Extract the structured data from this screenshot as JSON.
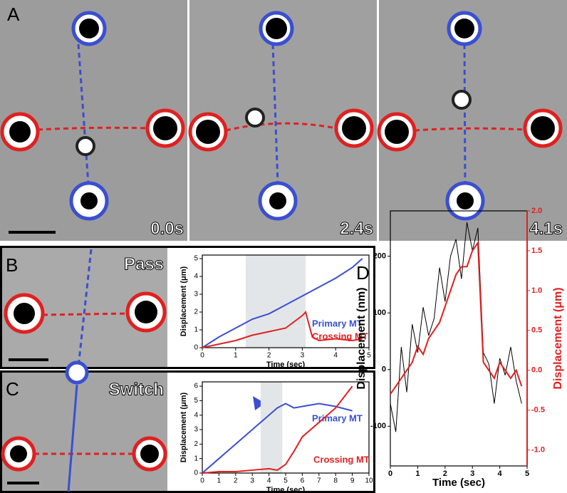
{
  "panels": {
    "A": {
      "label": "A",
      "times": [
        "0.0s",
        "2.4s",
        "4.1s"
      ]
    },
    "B": {
      "label": "B",
      "caption": "Pass"
    },
    "C": {
      "label": "C",
      "caption": "Switch"
    },
    "D": {
      "label": "D"
    }
  },
  "chart_data": [
    {
      "type": "line",
      "x_label": "Time (sec)",
      "y_label": "Displacement (μm)",
      "x": [
        0,
        0.5,
        1,
        1.5,
        2,
        2.5,
        3,
        3.1,
        3.3,
        3.5,
        4,
        4.5,
        4.8
      ],
      "series": [
        {
          "name": "Primary MT",
          "color": "#3a4fd0",
          "values": [
            0,
            0.6,
            1.1,
            1.6,
            1.9,
            2.4,
            2.9,
            3.0,
            3.2,
            3.4,
            3.9,
            4.5,
            5.0
          ]
        },
        {
          "name": "Crossing MT",
          "color": "#e02020",
          "values": [
            0,
            0.2,
            0.4,
            0.7,
            0.9,
            1.1,
            1.8,
            2.0,
            0.6,
            0.4,
            0.5,
            0.4,
            0.5
          ]
        }
      ],
      "highlight": [
        1.3,
        3.1
      ],
      "xlim": [
        0,
        5
      ],
      "xticks": [
        0,
        1,
        2,
        3,
        4,
        5
      ],
      "ylim": [
        0,
        5.2
      ],
      "yticks": [
        0,
        1,
        2,
        3,
        4,
        5
      ]
    },
    {
      "type": "line",
      "x_label": "Time (sec)",
      "y_label": "Displacement (μm)",
      "x": [
        0,
        1,
        2,
        3,
        4,
        4.5,
        5,
        5.5,
        6,
        7,
        8,
        9
      ],
      "series": [
        {
          "name": "Primary MT",
          "color": "#3a4fd0",
          "values": [
            0,
            1,
            2,
            3,
            4,
            4.5,
            4.8,
            4.5,
            4.6,
            4.8,
            4.6,
            4.3
          ]
        },
        {
          "name": "Crossing MT",
          "color": "#e02020",
          "values": [
            0,
            0.1,
            0.1,
            0.2,
            0.3,
            0.2,
            0.6,
            1.5,
            2.5,
            3.5,
            4.5,
            6.0
          ]
        }
      ],
      "highlight": [
        3.5,
        4.8
      ],
      "xlim": [
        0,
        10
      ],
      "xticks": [
        0,
        1,
        2,
        3,
        4,
        5,
        6,
        7,
        8,
        9,
        10
      ],
      "ylim": [
        0,
        6.3
      ],
      "yticks": [
        0,
        1,
        2,
        3,
        4,
        5,
        6
      ]
    },
    {
      "type": "line",
      "x_label": "Time (sec)",
      "y_label": "Displacement (nm)",
      "y2_label": "Displacement (μm)",
      "x": [
        0,
        0.2,
        0.4,
        0.6,
        0.8,
        1,
        1.2,
        1.4,
        1.6,
        1.8,
        2,
        2.2,
        2.4,
        2.6,
        2.8,
        3,
        3.2,
        3.4,
        3.6,
        3.8,
        4,
        4.2,
        4.4,
        4.6,
        4.8
      ],
      "series": [
        {
          "color": "#000000",
          "values": [
            -60,
            -110,
            40,
            -40,
            80,
            30,
            110,
            60,
            90,
            180,
            120,
            200,
            230,
            160,
            260,
            210,
            250,
            30,
            10,
            -60,
            20,
            -10,
            40,
            -20,
            -60
          ]
        },
        {
          "color": "#e02020",
          "axis": "y2",
          "values": [
            -0.3,
            -0.2,
            -0.1,
            0.0,
            0.1,
            0.3,
            0.2,
            0.4,
            0.5,
            0.6,
            0.8,
            1.0,
            1.2,
            1.3,
            1.3,
            1.5,
            1.6,
            0.1,
            0.0,
            -0.1,
            0.1,
            0.0,
            -0.1,
            0.0,
            -0.2
          ]
        }
      ],
      "xlim": [
        0,
        5
      ],
      "xticks": [
        0,
        1,
        2,
        3,
        4,
        5
      ],
      "ylim": [
        -170,
        280
      ],
      "yticks": [
        -100,
        0,
        100,
        200
      ],
      "y2lim": [
        -1.2,
        2.0
      ],
      "y2ticks": [
        {
          "value": -1.0,
          "label": "-1.0"
        },
        -0.5,
        {
          "value": 0,
          "label": "0.0"
        },
        0.5,
        {
          "value": 1.0,
          "label": "1.0"
        },
        1.5,
        {
          "value": 2.0,
          "label": "2.0"
        }
      ]
    }
  ]
}
